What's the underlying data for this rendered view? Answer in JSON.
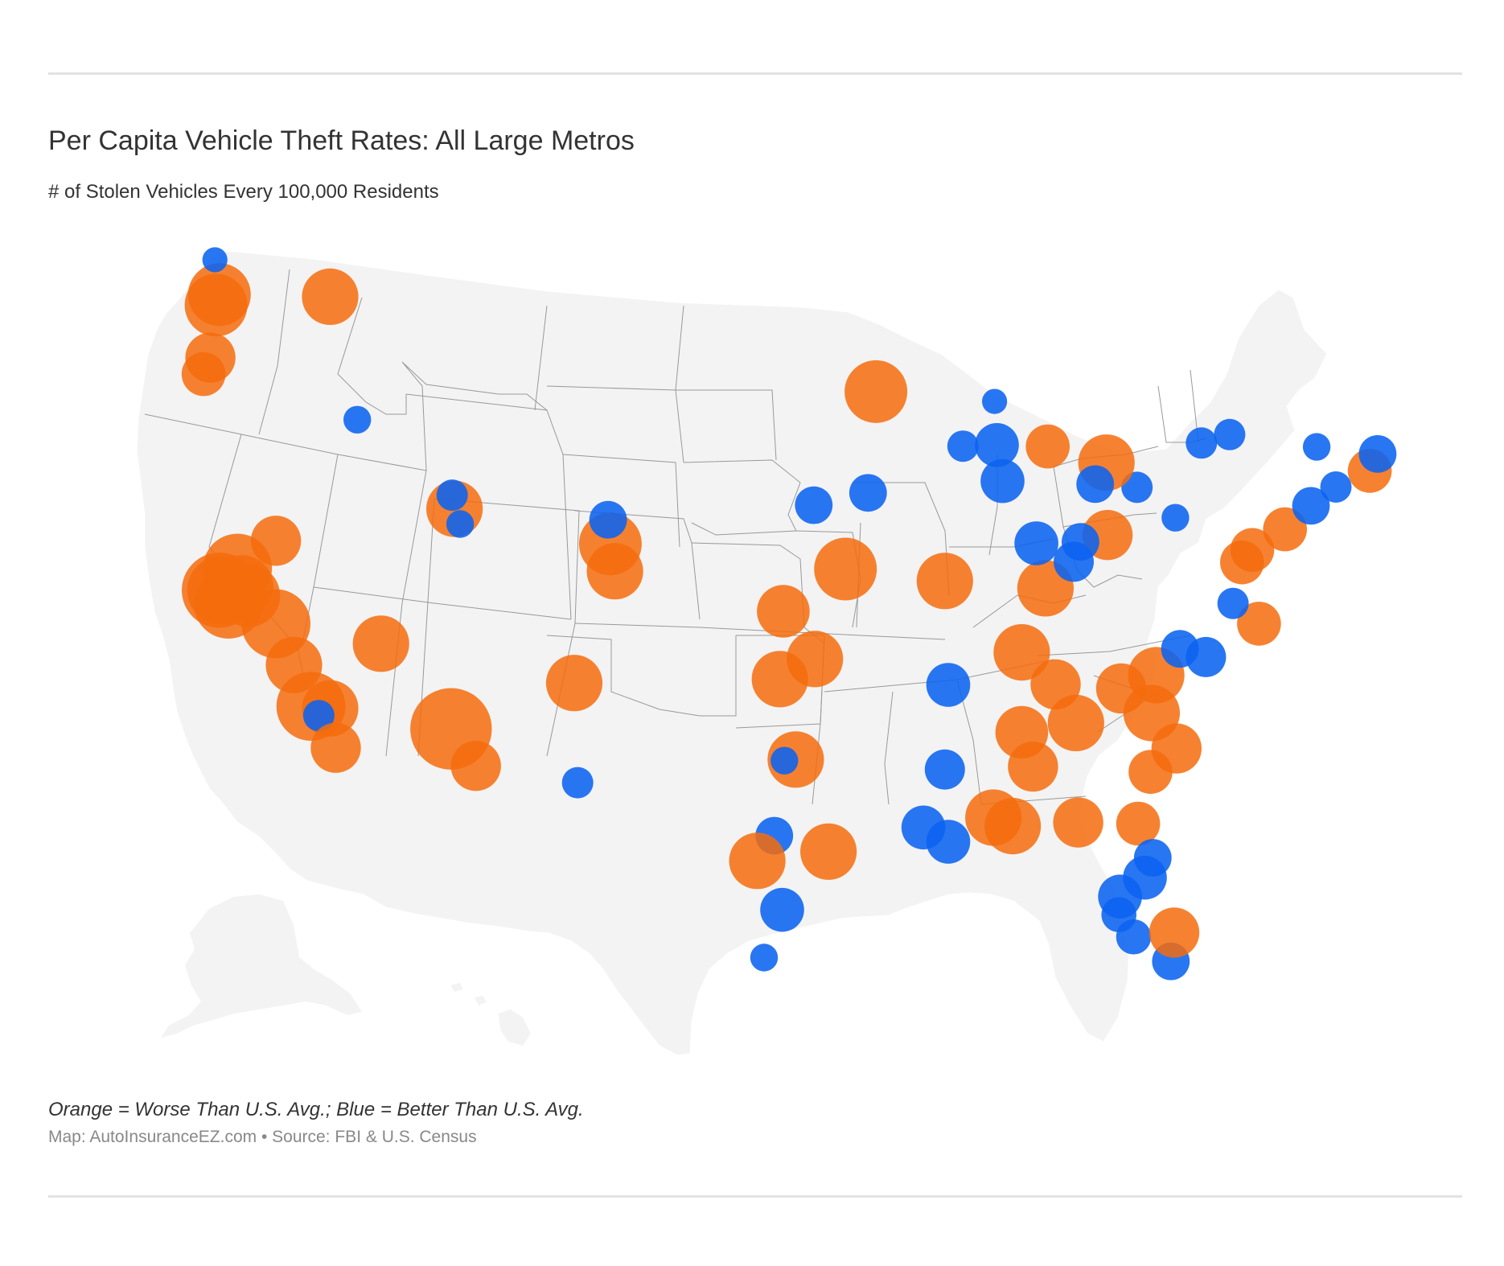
{
  "title": "Per Capita Vehicle Theft Rates: All Large Metros",
  "subtitle": "# of Stolen Vehicles Every 100,000 Residents",
  "legend_note": "Orange = Worse Than U.S. Avg.; Blue = Better Than U.S. Avg.",
  "source_note": "Map: AutoInsuranceEZ.com • Source: FBI & U.S. Census",
  "colors": {
    "worse": "#f56c0d",
    "better": "#0b63f0",
    "land": "#f3f3f3",
    "border": "#999999"
  },
  "map": {
    "projection": "albers-usa",
    "categories": [
      "worse",
      "better"
    ],
    "markers": [
      {
        "lat": 47.6,
        "lon": -122.3,
        "cat": "worse",
        "size": 5
      },
      {
        "lat": 47.25,
        "lon": -122.45,
        "cat": "worse",
        "size": 5
      },
      {
        "lat": 47.65,
        "lon": -117.4,
        "cat": "worse",
        "size": 4.5
      },
      {
        "lat": 48.75,
        "lon": -122.5,
        "cat": "better",
        "size": 2
      },
      {
        "lat": 45.5,
        "lon": -122.7,
        "cat": "worse",
        "size": 4
      },
      {
        "lat": 44.95,
        "lon": -123.0,
        "cat": "worse",
        "size": 3.5
      },
      {
        "lat": 43.6,
        "lon": -116.2,
        "cat": "better",
        "size": 2.2
      },
      {
        "lat": 38.55,
        "lon": -121.5,
        "cat": "worse",
        "size": 5.5
      },
      {
        "lat": 37.8,
        "lon": -122.3,
        "cat": "worse",
        "size": 6
      },
      {
        "lat": 37.8,
        "lon": -122.2,
        "cat": "worse",
        "size": 5.5
      },
      {
        "lat": 37.35,
        "lon": -121.9,
        "cat": "worse",
        "size": 5.5
      },
      {
        "lat": 37.95,
        "lon": -121.3,
        "cat": "worse",
        "size": 5
      },
      {
        "lat": 37.65,
        "lon": -121.0,
        "cat": "worse",
        "size": 5
      },
      {
        "lat": 39.5,
        "lon": -119.8,
        "cat": "worse",
        "size": 4
      },
      {
        "lat": 36.75,
        "lon": -119.8,
        "cat": "worse",
        "size": 5.5
      },
      {
        "lat": 35.4,
        "lon": -119.0,
        "cat": "worse",
        "size": 4.5
      },
      {
        "lat": 34.05,
        "lon": -118.25,
        "cat": "worse",
        "size": 5.5
      },
      {
        "lat": 34.0,
        "lon": -117.4,
        "cat": "worse",
        "size": 4.5
      },
      {
        "lat": 33.75,
        "lon": -117.9,
        "cat": "better",
        "size": 2.5
      },
      {
        "lat": 32.7,
        "lon": -117.15,
        "cat": "worse",
        "size": 4
      },
      {
        "lat": 36.2,
        "lon": -115.15,
        "cat": "worse",
        "size": 4.5
      },
      {
        "lat": 40.75,
        "lon": -111.9,
        "cat": "worse",
        "size": 4.5
      },
      {
        "lat": 41.2,
        "lon": -112.0,
        "cat": "better",
        "size": 2.5
      },
      {
        "lat": 40.25,
        "lon": -111.65,
        "cat": "better",
        "size": 2.2
      },
      {
        "lat": 39.75,
        "lon": -105.0,
        "cat": "worse",
        "size": 5
      },
      {
        "lat": 38.85,
        "lon": -104.8,
        "cat": "worse",
        "size": 4.5
      },
      {
        "lat": 40.55,
        "lon": -105.1,
        "cat": "better",
        "size": 3
      },
      {
        "lat": 33.45,
        "lon": -112.05,
        "cat": "worse",
        "size": 6.5
      },
      {
        "lat": 32.25,
        "lon": -110.95,
        "cat": "worse",
        "size": 4
      },
      {
        "lat": 35.1,
        "lon": -106.6,
        "cat": "worse",
        "size": 4.5
      },
      {
        "lat": 31.8,
        "lon": -106.45,
        "cat": "better",
        "size": 2.5
      },
      {
        "lat": 35.45,
        "lon": -97.5,
        "cat": "worse",
        "size": 4.5
      },
      {
        "lat": 36.15,
        "lon": -95.95,
        "cat": "worse",
        "size": 4.5
      },
      {
        "lat": 37.7,
        "lon": -97.35,
        "cat": "worse",
        "size": 4.2
      },
      {
        "lat": 39.1,
        "lon": -94.6,
        "cat": "worse",
        "size": 5
      },
      {
        "lat": 41.25,
        "lon": -96.0,
        "cat": "better",
        "size": 3
      },
      {
        "lat": 44.95,
        "lon": -93.25,
        "cat": "worse",
        "size": 5
      },
      {
        "lat": 38.6,
        "lon": -90.2,
        "cat": "worse",
        "size": 4.5
      },
      {
        "lat": 32.8,
        "lon": -96.8,
        "cat": "worse",
        "size": 4.5
      },
      {
        "lat": 32.75,
        "lon": -97.3,
        "cat": "better",
        "size": 2.2
      },
      {
        "lat": 30.25,
        "lon": -97.75,
        "cat": "better",
        "size": 3
      },
      {
        "lat": 29.4,
        "lon": -98.5,
        "cat": "worse",
        "size": 4.5
      },
      {
        "lat": 29.75,
        "lon": -95.35,
        "cat": "worse",
        "size": 4.5
      },
      {
        "lat": 27.8,
        "lon": -97.4,
        "cat": "better",
        "size": 3.5
      },
      {
        "lat": 26.2,
        "lon": -98.2,
        "cat": "better",
        "size": 2.2
      },
      {
        "lat": 30.45,
        "lon": -91.15,
        "cat": "better",
        "size": 3.5
      },
      {
        "lat": 29.95,
        "lon": -90.05,
        "cat": "better",
        "size": 3.5
      },
      {
        "lat": 30.7,
        "lon": -88.05,
        "cat": "worse",
        "size": 4.5
      },
      {
        "lat": 30.4,
        "lon": -87.2,
        "cat": "worse",
        "size": 4.5
      },
      {
        "lat": 32.35,
        "lon": -90.2,
        "cat": "better",
        "size": 3.2
      },
      {
        "lat": 35.15,
        "lon": -90.05,
        "cat": "better",
        "size": 3.5
      },
      {
        "lat": 36.15,
        "lon": -86.8,
        "cat": "worse",
        "size": 4.5
      },
      {
        "lat": 38.25,
        "lon": -85.75,
        "cat": "worse",
        "size": 4.5
      },
      {
        "lat": 35.05,
        "lon": -85.3,
        "cat": "worse",
        "size": 4
      },
      {
        "lat": 33.75,
        "lon": -84.4,
        "cat": "worse",
        "size": 4.5
      },
      {
        "lat": 33.5,
        "lon": -86.8,
        "cat": "worse",
        "size": 4.2
      },
      {
        "lat": 32.35,
        "lon": -86.3,
        "cat": "worse",
        "size": 4
      },
      {
        "lat": 30.45,
        "lon": -84.3,
        "cat": "worse",
        "size": 4
      },
      {
        "lat": 30.35,
        "lon": -81.65,
        "cat": "worse",
        "size": 3.5
      },
      {
        "lat": 28.55,
        "lon": -81.35,
        "cat": "better",
        "size": 3.5
      },
      {
        "lat": 27.95,
        "lon": -82.45,
        "cat": "better",
        "size": 3.5
      },
      {
        "lat": 27.35,
        "lon": -82.5,
        "cat": "better",
        "size": 2.8
      },
      {
        "lat": 26.6,
        "lon": -81.85,
        "cat": "better",
        "size": 2.8
      },
      {
        "lat": 25.75,
        "lon": -80.2,
        "cat": "better",
        "size": 3
      },
      {
        "lat": 26.7,
        "lon": -80.05,
        "cat": "worse",
        "size": 4
      },
      {
        "lat": 29.2,
        "lon": -81.0,
        "cat": "better",
        "size": 3
      },
      {
        "lat": 32.05,
        "lon": -81.1,
        "cat": "worse",
        "size": 3.5
      },
      {
        "lat": 32.8,
        "lon": -79.95,
        "cat": "worse",
        "size": 4
      },
      {
        "lat": 34.0,
        "lon": -81.05,
        "cat": "worse",
        "size": 4.5
      },
      {
        "lat": 34.85,
        "lon": -82.4,
        "cat": "worse",
        "size": 4
      },
      {
        "lat": 35.25,
        "lon": -80.85,
        "cat": "worse",
        "size": 4.5
      },
      {
        "lat": 36.1,
        "lon": -79.8,
        "cat": "better",
        "size": 3
      },
      {
        "lat": 35.8,
        "lon": -78.65,
        "cat": "better",
        "size": 3.2
      },
      {
        "lat": 36.85,
        "lon": -76.3,
        "cat": "worse",
        "size": 3.5
      },
      {
        "lat": 37.55,
        "lon": -77.45,
        "cat": "better",
        "size": 2.5
      },
      {
        "lat": 38.9,
        "lon": -77.05,
        "cat": "worse",
        "size": 3.5
      },
      {
        "lat": 39.3,
        "lon": -76.6,
        "cat": "worse",
        "size": 3.5
      },
      {
        "lat": 39.95,
        "lon": -75.15,
        "cat": "worse",
        "size": 3.5
      },
      {
        "lat": 40.7,
        "lon": -74.0,
        "cat": "better",
        "size": 3
      },
      {
        "lat": 41.3,
        "lon": -72.9,
        "cat": "better",
        "size": 2.5
      },
      {
        "lat": 41.8,
        "lon": -71.4,
        "cat": "worse",
        "size": 3.5
      },
      {
        "lat": 42.35,
        "lon": -71.05,
        "cat": "better",
        "size": 3
      },
      {
        "lat": 42.65,
        "lon": -73.75,
        "cat": "better",
        "size": 2.2
      },
      {
        "lat": 42.9,
        "lon": -78.85,
        "cat": "better",
        "size": 2.5
      },
      {
        "lat": 43.15,
        "lon": -77.6,
        "cat": "better",
        "size": 2.5
      },
      {
        "lat": 40.45,
        "lon": -80.0,
        "cat": "better",
        "size": 2.2
      },
      {
        "lat": 41.5,
        "lon": -81.7,
        "cat": "better",
        "size": 2.5
      },
      {
        "lat": 39.95,
        "lon": -83.0,
        "cat": "worse",
        "size": 4
      },
      {
        "lat": 39.1,
        "lon": -84.5,
        "cat": "better",
        "size": 3.2
      },
      {
        "lat": 39.75,
        "lon": -84.2,
        "cat": "better",
        "size": 3
      },
      {
        "lat": 42.35,
        "lon": -83.05,
        "cat": "worse",
        "size": 4.5
      },
      {
        "lat": 42.95,
        "lon": -85.65,
        "cat": "worse",
        "size": 3.5
      },
      {
        "lat": 41.65,
        "lon": -83.55,
        "cat": "better",
        "size": 3
      },
      {
        "lat": 41.85,
        "lon": -87.65,
        "cat": "better",
        "size": 3.5
      },
      {
        "lat": 43.05,
        "lon": -87.9,
        "cat": "better",
        "size": 3.5
      },
      {
        "lat": 43.05,
        "lon": -89.4,
        "cat": "better",
        "size": 2.5
      },
      {
        "lat": 39.75,
        "lon": -86.15,
        "cat": "better",
        "size": 3.5
      },
      {
        "lat": 41.6,
        "lon": -93.6,
        "cat": "better",
        "size": 3
      },
      {
        "lat": 44.5,
        "lon": -88.0,
        "cat": "better",
        "size": 2
      }
    ]
  }
}
